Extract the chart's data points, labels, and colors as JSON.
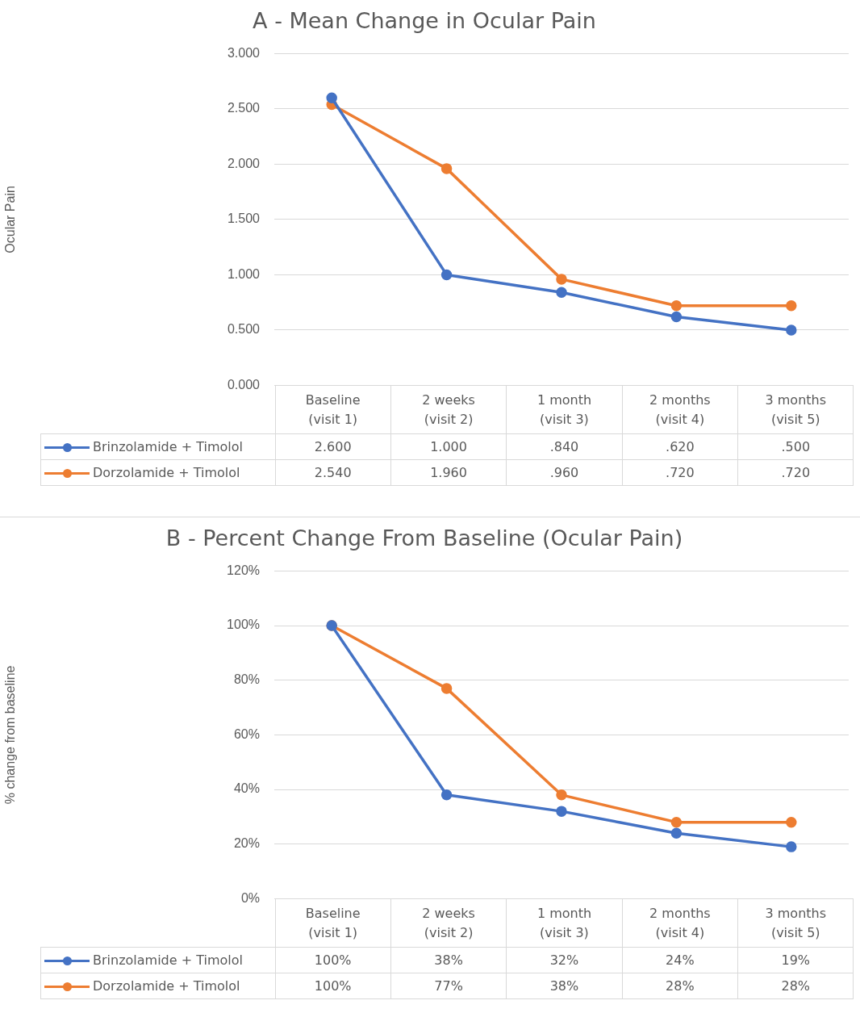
{
  "chart_data": [
    {
      "type": "line",
      "title": "A - Mean Change in Ocular Pain",
      "ylabel": "Ocular Pain",
      "categories": [
        "Baseline\n(visit 1)",
        "2 weeks\n(visit 2)",
        "1 month\n(visit 3)",
        "2 months\n(visit 4)",
        "3 months\n(visit 5)"
      ],
      "series": [
        {
          "name": "Brinzolamide + Timolol",
          "color": "#4472c4",
          "values": [
            2.6,
            1.0,
            0.84,
            0.62,
            0.5
          ],
          "value_labels": [
            "2.600",
            "1.000",
            ".840",
            ".620",
            ".500"
          ]
        },
        {
          "name": "Dorzolamide + Timolol",
          "color": "#ed7d31",
          "values": [
            2.54,
            1.96,
            0.96,
            0.72,
            0.72
          ],
          "value_labels": [
            "2.540",
            "1.960",
            ".960",
            ".720",
            ".720"
          ]
        }
      ],
      "ylim": [
        0,
        3
      ],
      "yticks": [
        {
          "value": 0,
          "label": "0.000"
        },
        {
          "value": 0.5,
          "label": "0.500"
        },
        {
          "value": 1,
          "label": "1.000"
        },
        {
          "value": 1.5,
          "label": "1.500"
        },
        {
          "value": 2,
          "label": "2.000"
        },
        {
          "value": 2.5,
          "label": "2.500"
        },
        {
          "value": 3,
          "label": "3.000"
        }
      ],
      "grid": "y",
      "legend": "bottom",
      "marker": "circle"
    },
    {
      "type": "line",
      "title": "B - Percent Change From Baseline (Ocular Pain)",
      "ylabel": "% change from baseline",
      "categories": [
        "Baseline\n(visit 1)",
        "2 weeks\n(visit 2)",
        "1 month\n(visit 3)",
        "2 months\n(visit 4)",
        "3 months\n(visit 5)"
      ],
      "series": [
        {
          "name": "Brinzolamide + Timolol",
          "color": "#4472c4",
          "values": [
            100,
            38,
            32,
            24,
            19
          ],
          "value_labels": [
            "100%",
            "38%",
            "32%",
            "24%",
            "19%"
          ]
        },
        {
          "name": "Dorzolamide + Timolol",
          "color": "#ed7d31",
          "values": [
            100,
            77,
            38,
            28,
            28
          ],
          "value_labels": [
            "100%",
            "77%",
            "38%",
            "28%",
            "28%"
          ]
        }
      ],
      "ylim": [
        0,
        120
      ],
      "yticks": [
        {
          "value": 0,
          "label": "0%"
        },
        {
          "value": 20,
          "label": "20%"
        },
        {
          "value": 40,
          "label": "40%"
        },
        {
          "value": 60,
          "label": "60%"
        },
        {
          "value": 80,
          "label": "80%"
        },
        {
          "value": 100,
          "label": "100%"
        },
        {
          "value": 120,
          "label": "120%"
        }
      ],
      "grid": "y",
      "legend": "bottom",
      "marker": "circle"
    }
  ]
}
